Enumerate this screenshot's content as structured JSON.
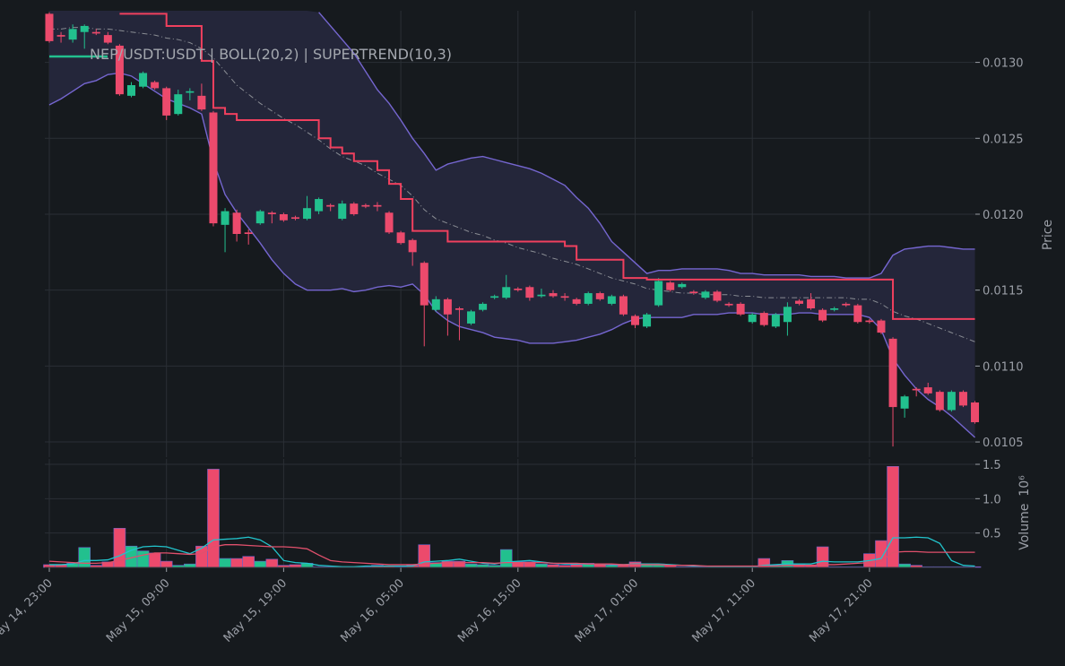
{
  "chart_data": [
    {
      "type": "candlestick",
      "title": "NEP/USDT:USDT | BOLL(20,2) | SUPERTREND(10,3)",
      "y_label": "Price",
      "open": [
        0.01332,
        0.01318,
        0.01315,
        0.0132,
        0.0132,
        0.01318,
        0.01311,
        0.01278,
        0.01284,
        0.01287,
        0.01283,
        0.01266,
        0.0128,
        0.01278,
        0.01267,
        0.01193,
        0.01201,
        0.01188,
        0.01194,
        0.01201,
        0.012,
        0.01198,
        0.01197,
        0.01202,
        0.01206,
        0.01197,
        0.01207,
        0.01206,
        0.01206,
        0.01201,
        0.01188,
        0.01183,
        0.01168,
        0.01137,
        0.01144,
        0.01138,
        0.01128,
        0.01137,
        0.01145,
        0.01145,
        0.01151,
        0.01152,
        0.01146,
        0.01148,
        0.01146,
        0.01144,
        0.01141,
        0.01148,
        0.01141,
        0.01146,
        0.01133,
        0.01126,
        0.0114,
        0.01155,
        0.01152,
        0.01149,
        0.01145,
        0.01149,
        0.01141,
        0.01141,
        0.01129,
        0.01135,
        0.01126,
        0.01129,
        0.01143,
        0.01144,
        0.01137,
        0.01137,
        0.01141,
        0.0114,
        0.0113,
        0.0113,
        0.01118,
        0.01072,
        0.01085,
        0.01086,
        0.01083,
        0.01071,
        0.01083,
        0.01076
      ],
      "high": [
        0.01333,
        0.0132,
        0.01325,
        0.01325,
        0.01322,
        0.0132,
        0.01312,
        0.01287,
        0.01294,
        0.01288,
        0.01284,
        0.01282,
        0.01283,
        0.01286,
        0.01268,
        0.01204,
        0.01203,
        0.0119,
        0.01203,
        0.01202,
        0.01201,
        0.01199,
        0.01212,
        0.01211,
        0.01207,
        0.01209,
        0.01208,
        0.01207,
        0.01208,
        0.01202,
        0.01189,
        0.01184,
        0.01169,
        0.01146,
        0.01145,
        0.01139,
        0.01137,
        0.01142,
        0.01147,
        0.0116,
        0.01152,
        0.01153,
        0.01151,
        0.0115,
        0.01148,
        0.01145,
        0.01149,
        0.01149,
        0.01147,
        0.01147,
        0.01134,
        0.01135,
        0.01158,
        0.01156,
        0.01155,
        0.0115,
        0.0115,
        0.0115,
        0.01142,
        0.01142,
        0.01135,
        0.01136,
        0.01135,
        0.01142,
        0.01144,
        0.01148,
        0.01138,
        0.01139,
        0.01142,
        0.01141,
        0.01131,
        0.01131,
        0.01119,
        0.01081,
        0.01086,
        0.01089,
        0.01084,
        0.01084,
        0.01084,
        0.01077
      ],
      "low": [
        0.01313,
        0.01313,
        0.01313,
        0.01309,
        0.01318,
        0.01312,
        0.01278,
        0.01277,
        0.01283,
        0.01282,
        0.01262,
        0.01265,
        0.01275,
        0.01268,
        0.01192,
        0.01175,
        0.01182,
        0.0118,
        0.01193,
        0.01194,
        0.01195,
        0.01196,
        0.01196,
        0.012,
        0.01202,
        0.01196,
        0.01199,
        0.01204,
        0.01202,
        0.01187,
        0.0118,
        0.01166,
        0.01113,
        0.01136,
        0.0112,
        0.01117,
        0.01127,
        0.01136,
        0.01144,
        0.01144,
        0.01149,
        0.01143,
        0.01145,
        0.01145,
        0.01143,
        0.0114,
        0.0114,
        0.01143,
        0.0114,
        0.01133,
        0.01125,
        0.01125,
        0.01139,
        0.01149,
        0.01151,
        0.01147,
        0.01144,
        0.01142,
        0.01139,
        0.01133,
        0.01128,
        0.01126,
        0.01125,
        0.0112,
        0.0114,
        0.01137,
        0.01129,
        0.01136,
        0.01139,
        0.01128,
        0.01128,
        0.01121,
        0.01047,
        0.01066,
        0.0108,
        0.01081,
        0.0107,
        0.0107,
        0.01073,
        0.01062
      ],
      "close": [
        0.01314,
        0.01317,
        0.01322,
        0.01324,
        0.01319,
        0.01313,
        0.01279,
        0.01285,
        0.01293,
        0.01283,
        0.01265,
        0.01279,
        0.01281,
        0.01269,
        0.01194,
        0.01202,
        0.01187,
        0.01187,
        0.01202,
        0.012,
        0.01196,
        0.01197,
        0.01204,
        0.0121,
        0.01205,
        0.01207,
        0.012,
        0.01205,
        0.01205,
        0.01188,
        0.01181,
        0.01175,
        0.0114,
        0.01144,
        0.01134,
        0.01137,
        0.01136,
        0.01141,
        0.01146,
        0.01152,
        0.0115,
        0.01145,
        0.01147,
        0.01146,
        0.01145,
        0.01141,
        0.01148,
        0.01144,
        0.01146,
        0.01134,
        0.01127,
        0.01134,
        0.01156,
        0.0115,
        0.01154,
        0.01148,
        0.01149,
        0.01143,
        0.0114,
        0.01134,
        0.01134,
        0.01127,
        0.01134,
        0.01139,
        0.01141,
        0.01138,
        0.0113,
        0.01138,
        0.0114,
        0.01129,
        0.01129,
        0.01122,
        0.01073,
        0.0108,
        0.01084,
        0.01082,
        0.01071,
        0.01083,
        0.01074,
        0.01063
      ],
      "up_color": "#22c08e",
      "down_color": "#ec4a6c",
      "title_swatch_color": "#22c08e",
      "band_fill": "#24263a",
      "series": [
        {
          "color": "#7566d0",
          "style": "solid",
          "values": [
            null,
            null,
            null,
            null,
            null,
            null,
            null,
            null,
            null,
            null,
            null,
            null,
            null,
            null,
            null,
            null,
            null,
            null,
            null,
            null,
            null,
            null,
            null,
            0.01333,
            0.01324,
            0.01315,
            0.01306,
            0.01294,
            0.01282,
            0.01273,
            0.01262,
            0.0125,
            0.0124,
            0.01229,
            0.01233,
            0.01235,
            0.01237,
            0.01238,
            0.01236,
            0.01234,
            0.01232,
            0.0123,
            0.01227,
            0.01223,
            0.01219,
            0.01211,
            0.01204,
            0.01194,
            0.01182,
            0.01175,
            0.01168,
            0.01161,
            0.01163,
            0.01163,
            0.01164,
            0.01164,
            0.01164,
            0.01164,
            0.01163,
            0.01161,
            0.01161,
            0.0116,
            0.0116,
            0.0116,
            0.0116,
            0.01159,
            0.01159,
            0.01159,
            0.01158,
            0.01158,
            0.01158,
            0.01161,
            0.01173,
            0.01177,
            0.01178,
            0.01179,
            0.01179,
            0.01178,
            0.01177,
            0.01177
          ]
        },
        {
          "color": "#8a8d94",
          "style": "dashdot",
          "values": [
            0.01322,
            0.01322,
            0.01323,
            0.01323,
            0.01322,
            0.01322,
            0.01321,
            0.0132,
            0.01319,
            0.01318,
            0.01316,
            0.01315,
            0.01313,
            0.01309,
            0.01303,
            0.01294,
            0.01285,
            0.01279,
            0.01273,
            0.01268,
            0.01263,
            0.01259,
            0.01254,
            0.01249,
            0.01243,
            0.01238,
            0.01235,
            0.01232,
            0.01227,
            0.01223,
            0.01219,
            0.01212,
            0.01203,
            0.01197,
            0.01194,
            0.01191,
            0.01188,
            0.01186,
            0.01183,
            0.01181,
            0.01178,
            0.01176,
            0.01174,
            0.01171,
            0.01169,
            0.01167,
            0.01164,
            0.01161,
            0.01158,
            0.01156,
            0.01154,
            0.01151,
            0.0115,
            0.01149,
            0.01148,
            0.01148,
            0.01147,
            0.01147,
            0.01147,
            0.01146,
            0.01146,
            0.01145,
            0.01145,
            0.01145,
            0.01145,
            0.01145,
            0.01145,
            0.01145,
            0.01145,
            0.01144,
            0.01144,
            0.01141,
            0.01136,
            0.01133,
            0.01131,
            0.01128,
            0.01125,
            0.01122,
            0.01119,
            0.01116
          ]
        },
        {
          "color": "#7566d0",
          "style": "solid",
          "values": [
            0.01272,
            0.01276,
            0.01281,
            0.01286,
            0.01288,
            0.01292,
            0.01293,
            0.01291,
            0.01286,
            0.01281,
            0.01276,
            0.01273,
            0.0127,
            0.01266,
            0.01235,
            0.01213,
            0.01201,
            0.01191,
            0.01181,
            0.0117,
            0.01161,
            0.01154,
            0.0115,
            0.0115,
            0.0115,
            0.01151,
            0.01149,
            0.0115,
            0.01152,
            0.01153,
            0.01152,
            0.01154,
            0.01147,
            0.01136,
            0.0113,
            0.01126,
            0.01124,
            0.01122,
            0.01119,
            0.01118,
            0.01117,
            0.01115,
            0.01115,
            0.01115,
            0.01116,
            0.01117,
            0.01119,
            0.01121,
            0.01124,
            0.01128,
            0.01131,
            0.01132,
            0.01132,
            0.01132,
            0.01132,
            0.01134,
            0.01134,
            0.01134,
            0.01135,
            0.01135,
            0.01135,
            0.01134,
            0.01134,
            0.01134,
            0.01135,
            0.01135,
            0.01134,
            0.01134,
            0.01134,
            0.01134,
            0.01132,
            0.01124,
            0.01105,
            0.01094,
            0.01085,
            0.01078,
            0.01073,
            0.01067,
            0.0106,
            0.01053
          ]
        },
        {
          "color": "#f0405e",
          "style": "step",
          "values": [
            null,
            null,
            null,
            null,
            null,
            null,
            0.01332,
            0.01332,
            0.01332,
            0.01332,
            0.01324,
            0.01324,
            0.01324,
            0.01301,
            0.0127,
            0.01266,
            0.01262,
            0.01262,
            0.01262,
            0.01262,
            0.01262,
            0.01262,
            0.01262,
            0.0125,
            0.01244,
            0.0124,
            0.01235,
            0.01235,
            0.01229,
            0.0122,
            0.0121,
            0.01189,
            0.01189,
            0.01189,
            0.01182,
            0.01182,
            0.01182,
            0.01182,
            0.01182,
            0.01182,
            0.01182,
            0.01182,
            0.01182,
            0.01182,
            0.01179,
            0.0117,
            0.0117,
            0.0117,
            0.0117,
            0.01158,
            0.01158,
            0.01157,
            0.01157,
            0.01157,
            0.01157,
            0.01157,
            0.01157,
            0.01157,
            0.01157,
            0.01157,
            0.01157,
            0.01157,
            0.01157,
            0.01157,
            0.01157,
            0.01157,
            0.01157,
            0.01157,
            0.01157,
            0.01157,
            0.01157,
            0.01157,
            0.01131,
            0.01131,
            0.01131,
            0.01131,
            0.01131,
            0.01131,
            0.01131,
            0.01131
          ]
        }
      ],
      "ylim": [
        0.0104,
        0.01334
      ],
      "yticks": [
        0.0105,
        {
          "value": 0.011,
          "label": "0.0110"
        },
        0.0115,
        {
          "value": 0.012,
          "label": "0.0120"
        },
        0.0125,
        {
          "value": 0.013,
          "label": "0.0130"
        }
      ],
      "grid": true
    },
    {
      "type": "bar",
      "y_label": "Volume",
      "y_scale_label": "10⁶",
      "categories": [
        "May 14, 23:00",
        null,
        null,
        null,
        null,
        null,
        null,
        null,
        null,
        null,
        "May 15, 09:00",
        null,
        null,
        null,
        null,
        null,
        null,
        null,
        null,
        null,
        "May 15, 19:00",
        null,
        null,
        null,
        null,
        null,
        null,
        null,
        null,
        null,
        "May 16, 05:00",
        null,
        null,
        null,
        null,
        null,
        null,
        null,
        null,
        null,
        "May 16, 15:00",
        null,
        null,
        null,
        null,
        null,
        null,
        null,
        null,
        null,
        "May 17, 01:00",
        null,
        null,
        null,
        null,
        null,
        null,
        null,
        null,
        null,
        "May 17, 11:00",
        null,
        null,
        null,
        null,
        null,
        null,
        null,
        null,
        null,
        "May 17, 21:00",
        null,
        null,
        null,
        null,
        null,
        null,
        null,
        null,
        null
      ],
      "values": [
        0.04,
        0.04,
        0.06,
        0.29,
        0.03,
        0.08,
        0.57,
        0.31,
        0.24,
        0.21,
        0.09,
        0.03,
        0.05,
        0.31,
        1.43,
        0.13,
        0.13,
        0.16,
        0.09,
        0.12,
        0.03,
        0.04,
        0.06,
        0.01,
        0.01,
        0.01,
        0.01,
        0.01,
        0.03,
        0.02,
        0.01,
        0.03,
        0.33,
        0.07,
        0.09,
        0.09,
        0.05,
        0.04,
        0.03,
        0.26,
        0.08,
        0.08,
        0.05,
        0.04,
        0.03,
        0.04,
        0.06,
        0.05,
        0.03,
        0.04,
        0.08,
        0.04,
        0.05,
        0.03,
        0.01,
        0.01,
        0.01,
        0.01,
        0.01,
        0.01,
        0.01,
        0.13,
        0.03,
        0.1,
        0.04,
        0.03,
        0.3,
        0.01,
        0.01,
        0.01,
        0.2,
        0.39,
        1.47,
        0.05,
        0.03,
        0.01,
        0.01,
        0.01,
        0.01,
        0.01
      ],
      "series": [
        {
          "color": "#22c4cc",
          "values": [
            0.04,
            0.04,
            0.05,
            0.1,
            0.1,
            0.11,
            0.17,
            0.25,
            0.3,
            0.31,
            0.3,
            0.25,
            0.2,
            0.28,
            0.4,
            0.41,
            0.42,
            0.44,
            0.4,
            0.3,
            0.1,
            0.07,
            0.06,
            0.03,
            0.02,
            0.01,
            0.01,
            0.02,
            0.02,
            0.02,
            0.02,
            0.02,
            0.08,
            0.09,
            0.1,
            0.12,
            0.09,
            0.06,
            0.05,
            0.08,
            0.09,
            0.1,
            0.08,
            0.06,
            0.05,
            0.05,
            0.05,
            0.05,
            0.04,
            0.04,
            0.05,
            0.05,
            0.05,
            0.04,
            0.03,
            0.02,
            0.02,
            0.01,
            0.01,
            0.01,
            0.01,
            0.03,
            0.04,
            0.05,
            0.05,
            0.05,
            0.09,
            0.08,
            0.08,
            0.08,
            0.1,
            0.13,
            0.43,
            0.43,
            0.44,
            0.43,
            0.35,
            0.1,
            0.03,
            0.02
          ]
        },
        {
          "color": "#e0506c",
          "values": [
            0.09,
            0.08,
            0.07,
            0.06,
            0.06,
            0.07,
            0.1,
            0.14,
            0.18,
            0.21,
            0.21,
            0.2,
            0.19,
            0.2,
            0.3,
            0.33,
            0.33,
            0.32,
            0.31,
            0.3,
            0.3,
            0.29,
            0.27,
            0.18,
            0.1,
            0.08,
            0.07,
            0.06,
            0.05,
            0.04,
            0.04,
            0.04,
            0.05,
            0.06,
            0.07,
            0.07,
            0.07,
            0.07,
            0.06,
            0.07,
            0.07,
            0.07,
            0.07,
            0.06,
            0.06,
            0.06,
            0.05,
            0.05,
            0.05,
            0.04,
            0.04,
            0.04,
            0.04,
            0.03,
            0.03,
            0.03,
            0.02,
            0.02,
            0.02,
            0.02,
            0.02,
            0.02,
            0.02,
            0.03,
            0.03,
            0.03,
            0.04,
            0.04,
            0.05,
            0.06,
            0.07,
            0.09,
            0.22,
            0.23,
            0.23,
            0.22,
            0.22,
            0.22,
            0.22,
            0.22
          ]
        }
      ],
      "ylim": [
        0,
        1.5
      ],
      "yticks": [
        0.5,
        {
          "value": 1,
          "label": "1.0"
        },
        1.5
      ],
      "grid": true
    }
  ]
}
